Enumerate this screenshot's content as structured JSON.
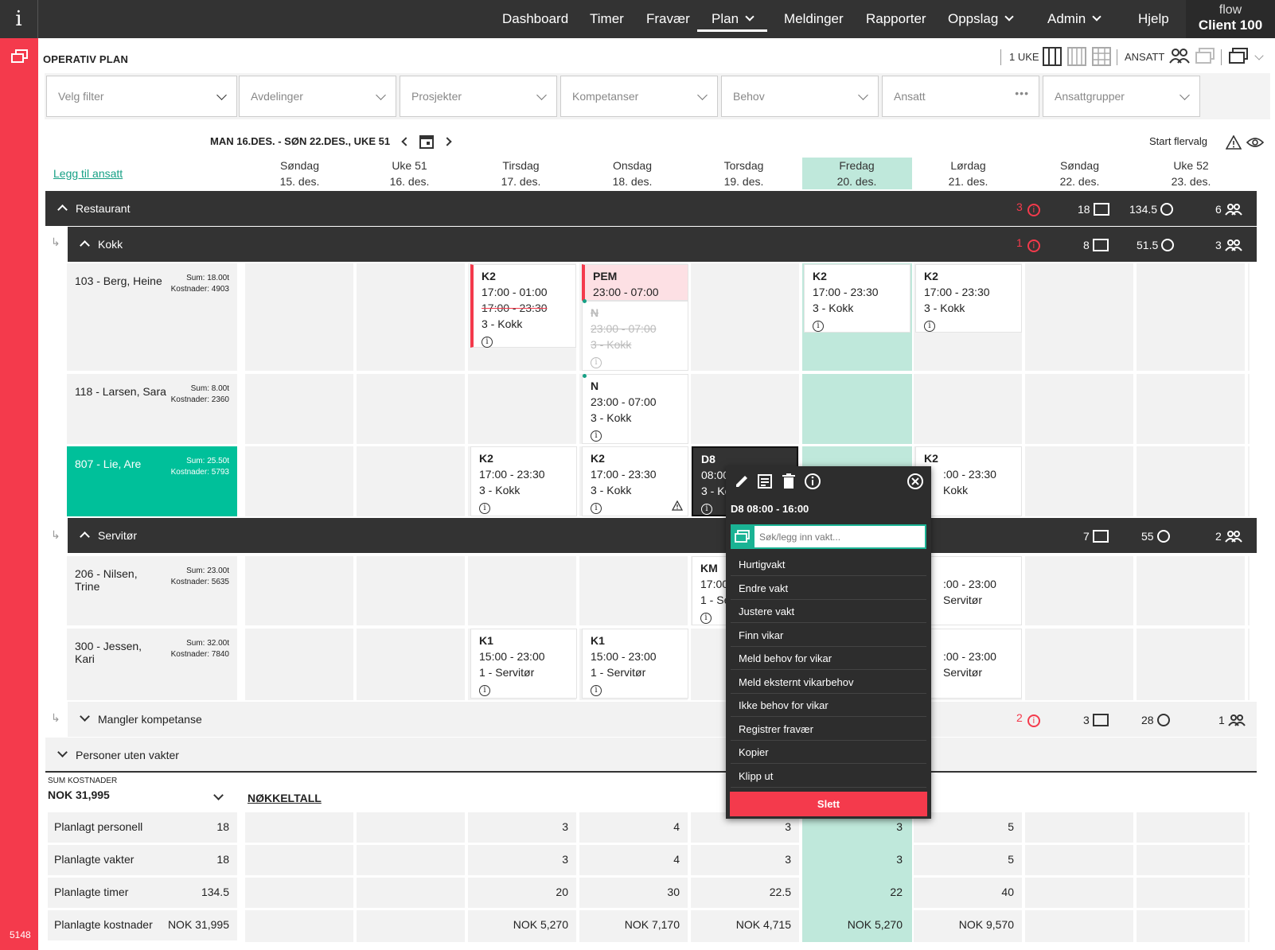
{
  "app": {
    "info": "i",
    "flow": "flow",
    "client": "Client 100",
    "build": "5148"
  },
  "nav": [
    {
      "label": "Dashboard"
    },
    {
      "label": "Timer"
    },
    {
      "label": "Fravær"
    },
    {
      "label": "Plan"
    },
    {
      "label": "Meldinger"
    },
    {
      "label": "Rapporter"
    },
    {
      "label": "Oppslag"
    },
    {
      "label": "Admin"
    },
    {
      "label": "Hjelp"
    }
  ],
  "page": {
    "title": "OPERATIV PLAN",
    "week_mode": "1 UKE",
    "view_mode": "ANSATT",
    "start_multi": "Start flervalg",
    "add_employee": "Legg til ansatt",
    "week_label": "MAN 16.DES. - SØN 22.DES., UKE 51"
  },
  "filters": [
    "Velg filter",
    "Avdelinger",
    "Prosjekter",
    "Kompetanser",
    "Behov",
    "Ansatt",
    "Ansattgrupper"
  ],
  "days": [
    {
      "name": "Søndag",
      "date": "15. des."
    },
    {
      "name": "Uke 51",
      "date": "16. des."
    },
    {
      "name": "Tirsdag",
      "date": "17. des."
    },
    {
      "name": "Onsdag",
      "date": "18. des."
    },
    {
      "name": "Torsdag",
      "date": "19. des."
    },
    {
      "name": "Fredag",
      "date": "20. des."
    },
    {
      "name": "Lørdag",
      "date": "21. des."
    },
    {
      "name": "Søndag",
      "date": "22. des."
    },
    {
      "name": "Uke 52",
      "date": "23. des."
    }
  ],
  "groups": {
    "restaurant": {
      "label": "Restaurant",
      "warn": "3",
      "shifts": "18",
      "hours": "134.5",
      "people": "6"
    },
    "kokk": {
      "label": "Kokk",
      "warn": "1",
      "shifts": "8",
      "hours": "51.5",
      "people": "3"
    },
    "servitor": {
      "label": "Servitør",
      "shifts": "7",
      "hours": "55",
      "people": "2"
    },
    "mangler": {
      "label": "Mangler kompetanse",
      "warn": "2",
      "shifts": "3",
      "hours": "28",
      "people": "1"
    },
    "uten": {
      "label": "Personer uten vakter"
    }
  },
  "employees": [
    {
      "name": "103 - Berg, Heine",
      "sum": "Sum: 18.00t",
      "cost": "Kostnader: 4903"
    },
    {
      "name": "118 - Larsen, Sara",
      "sum": "Sum: 8.00t",
      "cost": "Kostnader: 2360"
    },
    {
      "name": "807 - Lie, Are",
      "sum": "Sum: 25.50t",
      "cost": "Kostnader: 5793"
    },
    {
      "name": "206 - Nilsen, Trine",
      "sum": "Sum: 23.00t",
      "cost": "Kostnader: 5635"
    },
    {
      "name": "300 - Jessen, Kari",
      "sum": "Sum: 32.00t",
      "cost": "Kostnader: 7840"
    }
  ],
  "shifts": {
    "berg_tue": {
      "code": "K2",
      "time": "17:00 - 01:00",
      "old": "17:00 - 23:30",
      "role": "3 - Kokk"
    },
    "berg_wed": {
      "code": "PEM",
      "time": "23:00 - 07:00",
      "old_code": "N",
      "old_time": "23:00 - 07:00",
      "old_role": "3 - Kokk"
    },
    "berg_fri": {
      "code": "K2",
      "time": "17:00 - 23:30",
      "role": "3 - Kokk"
    },
    "berg_sat": {
      "code": "K2",
      "time": "17:00 - 23:30",
      "role": "3 - Kokk"
    },
    "larsen_wed": {
      "code": "N",
      "time": "23:00 - 07:00",
      "role": "3 - Kokk"
    },
    "lie_tue": {
      "code": "K2",
      "time": "17:00 - 23:30",
      "role": "3 - Kokk"
    },
    "lie_wed": {
      "code": "K2",
      "time": "17:00 - 23:30",
      "role": "3 - Kokk"
    },
    "lie_thu": {
      "code": "D8",
      "time": "08:00",
      "role": "3 - Ko"
    },
    "lie_sat": {
      "code": "K2",
      "time": ":00 - 23:30",
      "role": "Kokk"
    },
    "nilsen_thu": {
      "code": "KM",
      "time": "17:00",
      "role": "1 - Ser"
    },
    "nilsen_sat": {
      "time": ":00 - 23:00",
      "role": "Servitør"
    },
    "jessen_tue": {
      "code": "K1",
      "time": "15:00 - 23:00",
      "role": "1 - Servitør"
    },
    "jessen_wed": {
      "code": "K1",
      "time": "15:00 - 23:00",
      "role": "1 - Servitør"
    },
    "jessen_sat": {
      "time": ":00 - 23:00",
      "role": "Servitør"
    }
  },
  "popup": {
    "title": "D8 08:00 - 16:00",
    "search_placeholder": "Søk/legg inn vakt...",
    "items": [
      "Hurtigvakt",
      "Endre vakt",
      "Justere vakt",
      "Finn vikar",
      "Meld behov for vikar",
      "Meld eksternt vikarbehov",
      "Ikke behov for vikar",
      "Registrer fravær",
      "Kopier",
      "Klipp ut"
    ],
    "delete": "Slett"
  },
  "summary": {
    "label": "SUM KOSTNADER",
    "total": "NOK 31,995",
    "kpi_link": "NØKKELTALL"
  },
  "kpis": [
    {
      "label": "Planlagt personell",
      "total": "18",
      "vals": [
        "3",
        "4",
        "3",
        "3",
        "5"
      ]
    },
    {
      "label": "Planlagte vakter",
      "total": "18",
      "vals": [
        "3",
        "4",
        "3",
        "3",
        "5"
      ]
    },
    {
      "label": "Planlagte timer",
      "total": "134.5",
      "vals": [
        "20",
        "30",
        "22.5",
        "22",
        "40"
      ]
    },
    {
      "label": "Planlagte kostnader",
      "total": "NOK 31,995",
      "vals": [
        "NOK 5,270",
        "NOK 7,170",
        "NOK 4,715",
        "NOK 5,270",
        "NOK 9,570"
      ]
    }
  ]
}
